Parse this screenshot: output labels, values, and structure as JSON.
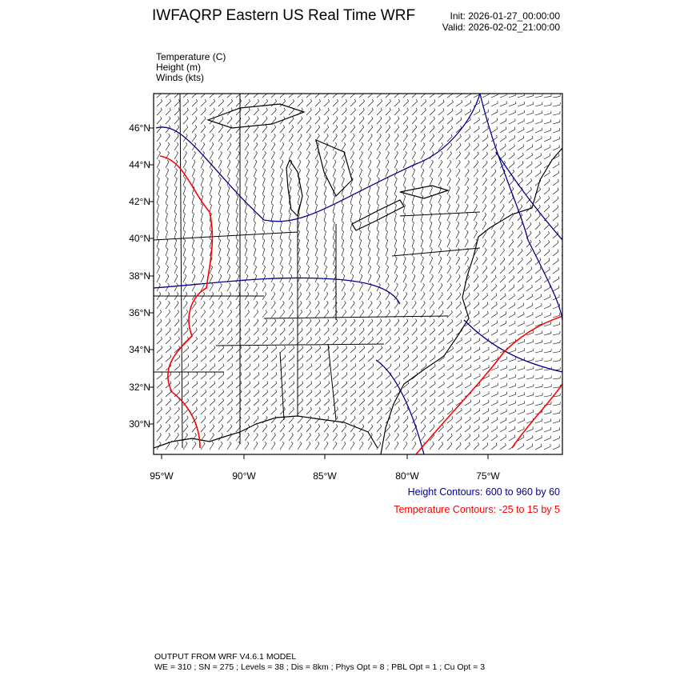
{
  "header": {
    "title": "IWFAQRP Eastern US Real Time WRF",
    "init": "Init: 2026-01-27_00:00:00",
    "valid": "Valid: 2026-02-02_21:00:00"
  },
  "variables": [
    "Temperature   (C)",
    "Height   (m)",
    "Winds   (kts)"
  ],
  "map": {
    "lat_labels": [
      "46°N",
      "44°N",
      "42°N",
      "40°N",
      "38°N",
      "36°N",
      "34°N",
      "32°N",
      "30°N"
    ],
    "lon_labels": [
      "95°W",
      "90°W",
      "85°W",
      "80°W",
      "75°W"
    ],
    "colors": {
      "height": "#00008b",
      "temperature": "#ff0000",
      "boundaries": "#000000"
    }
  },
  "contours": {
    "height": "Height Contours: 600 to 960 by 60",
    "temperature": "Temperature Contours: -25 to 15 by 5"
  },
  "footer": {
    "line1": "OUTPUT FROM WRF V4.6.1 MODEL",
    "line2": "WE = 310 ; SN = 275 ; Levels = 38 ; Dis = 8km ; Phys Opt = 8 ; PBL Opt = 1 ; Cu Opt = 3"
  }
}
